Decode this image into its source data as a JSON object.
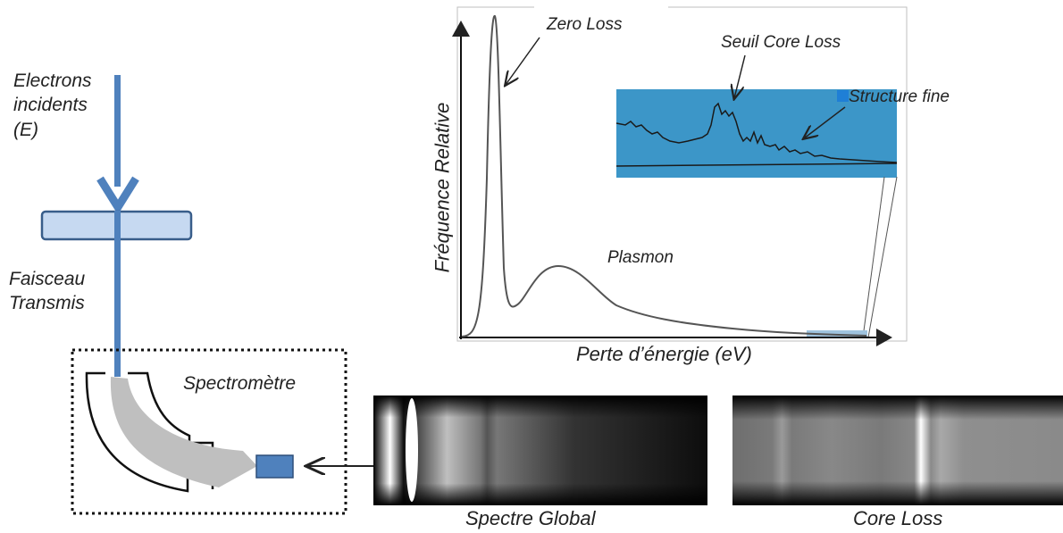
{
  "labels": {
    "incident_line1": "Electrons",
    "incident_line2": "incidents",
    "incident_line3": "(E)",
    "beam_line1": "Faisceau",
    "beam_line2": "Transmis",
    "spectrometer": "Spectromètre",
    "zero_loss": "Zero Loss",
    "core_loss_edge": "Seuil Core Loss",
    "fine_structure": "Structure fine",
    "plasmon": "Plasmon",
    "y_axis": "Fréquence Relative",
    "x_axis": "Perte d’énergie (eV)",
    "global_spectrum": "Spectre Global",
    "core_loss": "Core Loss"
  },
  "colors": {
    "beam": "#4f81bd",
    "sample": "#c6d9f1",
    "sample_border": "#385d8a",
    "inset": "#3c96c8",
    "prism": "#bfbfbf",
    "detector": "#4f81bd"
  }
}
